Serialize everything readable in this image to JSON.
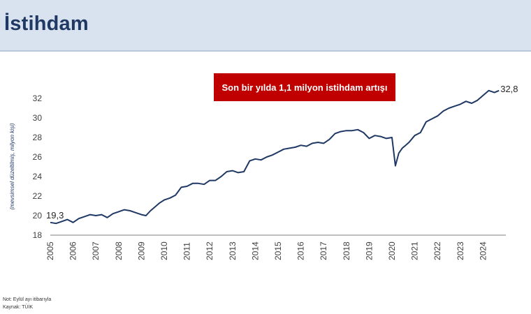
{
  "header": {
    "title": "İstihdam"
  },
  "colors": {
    "line": "#1f3864",
    "callout": "#c00000",
    "header_bg": "#d9e2ef",
    "title": "#1f3864"
  },
  "footnotes": {
    "note": "Not: Eylül ayı itibarıyla",
    "source": "Kaynak: TÜİK"
  },
  "chart_data": {
    "type": "line",
    "ylabel": "(mevsimsel düzeltilmiş, milyon kişi)",
    "ylim": [
      18,
      33.5
    ],
    "yticks": [
      18,
      20,
      22,
      24,
      26,
      28,
      30,
      32
    ],
    "ytick_labels": [
      "18",
      "20",
      "22",
      "24",
      "26",
      "28",
      "30",
      "32"
    ],
    "xlim": [
      2005,
      2025
    ],
    "xticks": [
      2005,
      2006,
      2007,
      2008,
      2009,
      2010,
      2011,
      2012,
      2013,
      2014,
      2015,
      2016,
      2017,
      2018,
      2019,
      2020,
      2021,
      2022,
      2023,
      2024
    ],
    "xtick_labels": [
      "2005",
      "2006",
      "2007",
      "2008",
      "2009",
      "2010",
      "2011",
      "2012",
      "2013",
      "2014",
      "2015",
      "2016",
      "2017",
      "2018",
      "2019",
      "2020",
      "2021",
      "2022",
      "2023",
      "2024"
    ],
    "grid": false,
    "callout": "Son bir yılda 1,1 milyon istihdam artışı",
    "annotations": [
      {
        "text": "19,3",
        "x": 2005.0,
        "y": 19.3
      },
      {
        "text": "32,8",
        "x": 2024.7,
        "y": 32.8
      }
    ],
    "series": [
      {
        "x": [
          2005.0,
          2005.25,
          2005.5,
          2005.75,
          2006.0,
          2006.25,
          2006.5,
          2006.75,
          2007.0,
          2007.25,
          2007.5,
          2007.75,
          2008.0,
          2008.25,
          2008.5,
          2008.75,
          2009.0,
          2009.2,
          2009.4,
          2009.6,
          2009.8,
          2010.0,
          2010.25,
          2010.5,
          2010.75,
          2011.0,
          2011.25,
          2011.5,
          2011.75,
          2012.0,
          2012.25,
          2012.5,
          2012.75,
          2013.0,
          2013.25,
          2013.5,
          2013.75,
          2014.0,
          2014.25,
          2014.5,
          2014.75,
          2015.0,
          2015.25,
          2015.5,
          2015.75,
          2016.0,
          2016.25,
          2016.5,
          2016.75,
          2017.0,
          2017.25,
          2017.5,
          2017.75,
          2018.0,
          2018.25,
          2018.5,
          2018.75,
          2019.0,
          2019.25,
          2019.5,
          2019.75,
          2020.0,
          2020.15,
          2020.3,
          2020.45,
          2020.6,
          2020.75,
          2021.0,
          2021.25,
          2021.5,
          2021.75,
          2022.0,
          2022.25,
          2022.5,
          2022.75,
          2023.0,
          2023.25,
          2023.5,
          2023.75,
          2024.0,
          2024.25,
          2024.5,
          2024.7
        ],
        "y": [
          19.3,
          19.2,
          19.4,
          19.6,
          19.3,
          19.7,
          19.9,
          20.1,
          20.0,
          20.1,
          19.8,
          20.2,
          20.4,
          20.6,
          20.5,
          20.3,
          20.1,
          20.0,
          20.5,
          20.9,
          21.3,
          21.6,
          21.8,
          22.1,
          22.9,
          23.0,
          23.3,
          23.3,
          23.2,
          23.6,
          23.6,
          24.0,
          24.5,
          24.6,
          24.4,
          24.5,
          25.6,
          25.8,
          25.7,
          26.0,
          26.2,
          26.5,
          26.8,
          26.9,
          27.0,
          27.2,
          27.1,
          27.4,
          27.5,
          27.4,
          27.8,
          28.4,
          28.6,
          28.7,
          28.7,
          28.8,
          28.5,
          27.9,
          28.2,
          28.1,
          27.9,
          28.0,
          25.1,
          26.4,
          26.9,
          27.2,
          27.5,
          28.2,
          28.5,
          29.6,
          29.9,
          30.2,
          30.7,
          31.0,
          31.2,
          31.4,
          31.7,
          31.5,
          31.8,
          32.3,
          32.8,
          32.6,
          32.8
        ]
      }
    ]
  }
}
